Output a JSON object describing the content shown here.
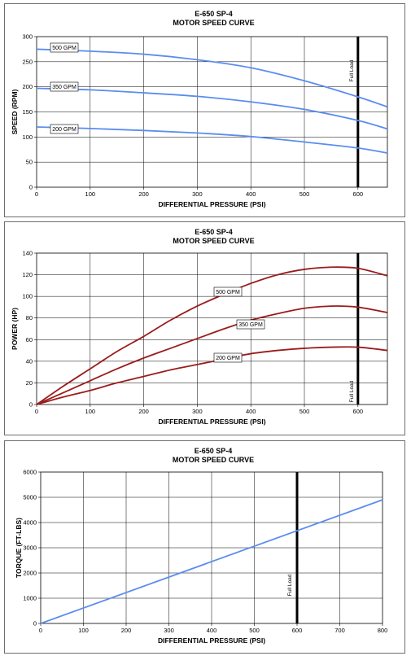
{
  "chart_data": [
    {
      "type": "line",
      "title": "E-650 SP-4",
      "subtitle": "MOTOR SPEED CURVE",
      "xlabel": "DIFFERENTIAL PRESSURE (PSI)",
      "ylabel": "SPEED (RPM)",
      "xlim": [
        0,
        655
      ],
      "ylim": [
        0,
        300
      ],
      "xticks": [
        0,
        100,
        200,
        300,
        400,
        500,
        600
      ],
      "yticks": [
        0,
        50,
        100,
        150,
        200,
        250,
        300
      ],
      "grid": true,
      "line_color": "#5b8def",
      "marker_line": {
        "x": 600,
        "label": "Full Load"
      },
      "series": [
        {
          "name": "500 GPM",
          "x": [
            0,
            100,
            200,
            300,
            400,
            500,
            600,
            655
          ],
          "values": [
            275,
            271,
            265,
            254,
            238,
            212,
            180,
            160
          ]
        },
        {
          "name": "350 GPM",
          "x": [
            0,
            100,
            200,
            300,
            400,
            500,
            600,
            655
          ],
          "values": [
            197,
            194,
            188,
            181,
            170,
            155,
            133,
            116
          ]
        },
        {
          "name": "200 GPM",
          "x": [
            0,
            100,
            200,
            300,
            400,
            500,
            600,
            655
          ],
          "values": [
            120,
            117,
            113,
            108,
            101,
            90,
            78,
            68
          ]
        }
      ]
    },
    {
      "type": "line",
      "title": "E-650 SP-4",
      "subtitle": "MOTOR SPEED CURVE",
      "xlabel": "DIFFERENTIAL PRESSURE (PSI)",
      "ylabel": "POWER (HP)",
      "xlim": [
        0,
        655
      ],
      "ylim": [
        0,
        140
      ],
      "xticks": [
        0,
        100,
        200,
        300,
        400,
        500,
        600
      ],
      "yticks": [
        0,
        20,
        40,
        60,
        80,
        100,
        120,
        140
      ],
      "grid": true,
      "line_color": "#9b1c1c",
      "marker_line": {
        "x": 600,
        "label": "Full Load"
      },
      "series": [
        {
          "name": "500 GPM",
          "x": [
            0,
            50,
            100,
            150,
            200,
            250,
            300,
            350,
            400,
            450,
            500,
            550,
            600,
            655
          ],
          "values": [
            0,
            17,
            33,
            49,
            63,
            78,
            91,
            102,
            112,
            120,
            125,
            127,
            126,
            119
          ]
        },
        {
          "name": "350 GPM",
          "x": [
            0,
            50,
            100,
            150,
            200,
            250,
            300,
            350,
            400,
            450,
            500,
            550,
            600,
            655
          ],
          "values": [
            0,
            11,
            22,
            33,
            43,
            52,
            61,
            70,
            78,
            84,
            89,
            91,
            90,
            85
          ]
        },
        {
          "name": "200 GPM",
          "x": [
            0,
            50,
            100,
            150,
            200,
            250,
            300,
            350,
            400,
            450,
            500,
            550,
            600,
            655
          ],
          "values": [
            0,
            7,
            13,
            20,
            26,
            32,
            37,
            42,
            47,
            50,
            52,
            53,
            53,
            50
          ]
        }
      ]
    },
    {
      "type": "line",
      "title": "E-650 SP-4",
      "subtitle": "MOTOR SPEED CURVE",
      "xlabel": "DIFFERENTIAL PRESSURE (PSI)",
      "ylabel": "TORQUE (FT-LBS)",
      "xlim": [
        0,
        800
      ],
      "ylim": [
        0,
        6000
      ],
      "xticks": [
        0,
        100,
        200,
        300,
        400,
        500,
        600,
        700,
        800
      ],
      "yticks": [
        0,
        1000,
        2000,
        3000,
        4000,
        5000,
        6000
      ],
      "grid": true,
      "line_color": "#5b8def",
      "marker_line": {
        "x": 600,
        "label": "Full Load"
      },
      "series": [
        {
          "name": "",
          "x": [
            0,
            800
          ],
          "values": [
            0,
            4900
          ]
        }
      ]
    }
  ]
}
